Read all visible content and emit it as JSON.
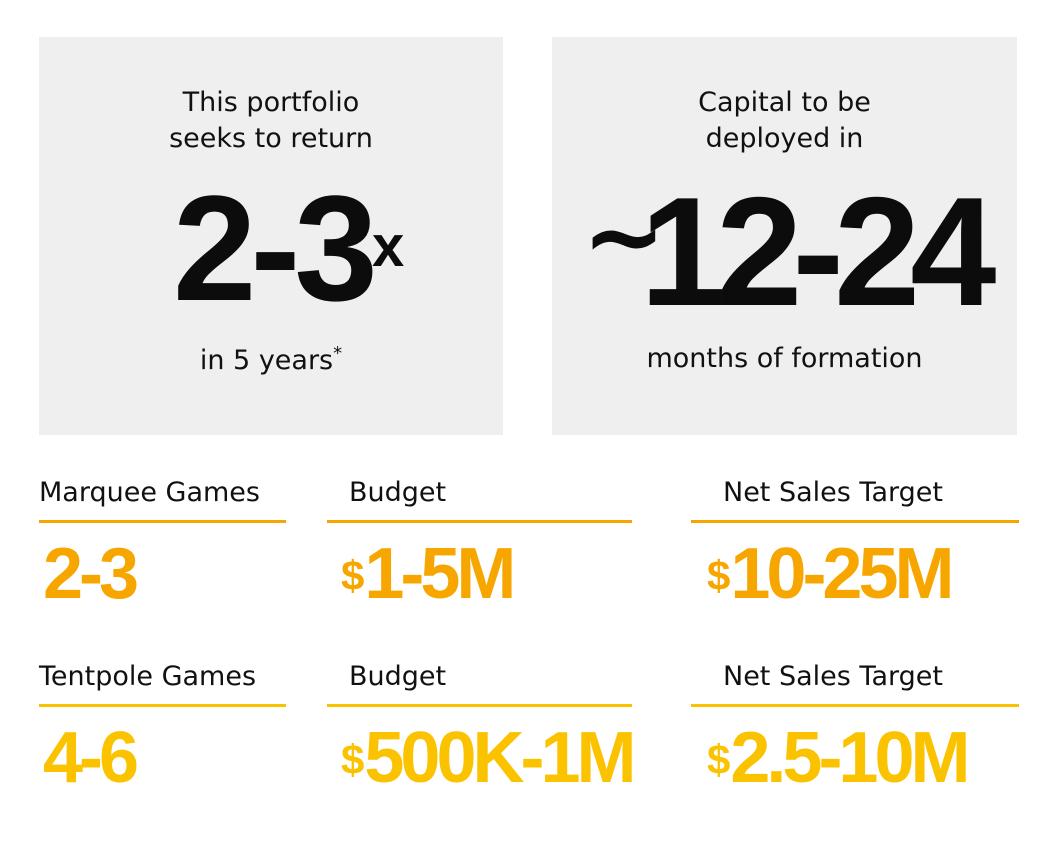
{
  "return_card": {
    "intro_line1": "This portfolio",
    "intro_line2": "seeks to return",
    "value": "2-3",
    "suffix": "x",
    "outro": "in 5 years",
    "footnote_mark": "*"
  },
  "deploy_card": {
    "intro_line1": "Capital to be",
    "intro_line2": "deployed in",
    "prefix": "~",
    "value": "12-24",
    "outro": "months of formation"
  },
  "colors": {
    "row1_accent": "#f7a600",
    "row2_accent": "#fbc200",
    "card_bg": "#efefef"
  },
  "rows": [
    {
      "games_label": "Marquee Games",
      "games_value": "2-3",
      "budget_label": "Budget",
      "budget_currency": "$",
      "budget_value": "1-5M",
      "sales_label": "Net Sales Target",
      "sales_currency": "$",
      "sales_value": "10-25M"
    },
    {
      "games_label": "Tentpole Games",
      "games_value": "4-6",
      "budget_label": "Budget",
      "budget_currency": "$",
      "budget_value": "500K-1M",
      "sales_label": "Net Sales Target",
      "sales_currency": "$",
      "sales_value": "2.5-10M"
    }
  ]
}
